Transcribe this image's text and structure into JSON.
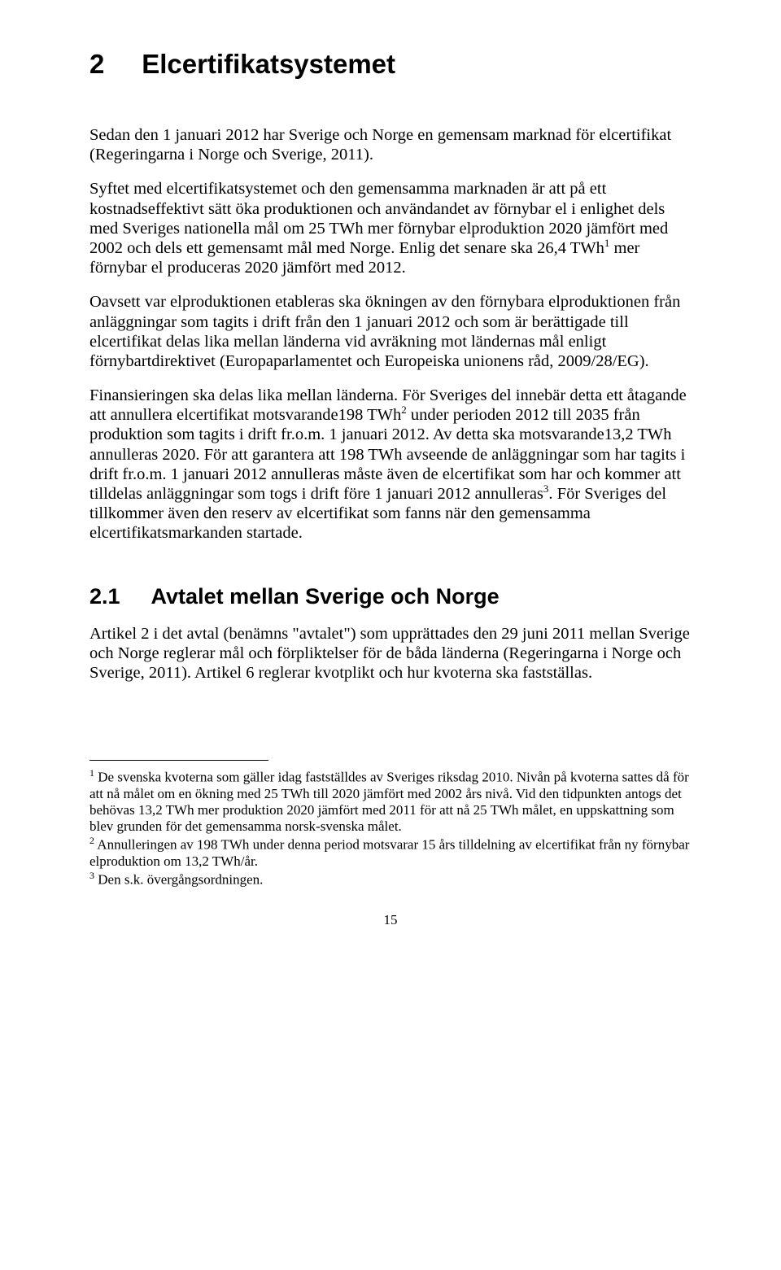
{
  "heading1_number": "2",
  "heading1_title": "Elcertifikatsystemet",
  "paragraphs": {
    "p1": "Sedan den 1 januari 2012 har Sverige och Norge en gemensam marknad för elcertifikat (Regeringarna i Norge och Sverige, 2011).",
    "p2_a": "Syftet med elcertifikatsystemet och den gemensamma marknaden är att på ett kostnadseffektivt sätt öka produktionen och användandet av förnybar el i enlighet dels med Sveriges nationella mål om 25 TWh mer förnybar elproduktion 2020 jämfört med 2002 och dels ett gemensamt mål med Norge. Enlig det senare ska 26,4 TWh",
    "p2_b": " mer förnybar el produceras 2020 jämfört med 2012.",
    "p3": "Oavsett var elproduktionen etableras ska ökningen av den förnybara elproduktionen från anläggningar som tagits i drift från den 1 januari 2012 och som är berättigade till elcertifikat delas lika mellan länderna vid avräkning mot ländernas mål enligt förnybartdirektivet (Europaparlamentet och Europeiska unionens råd, 2009/28/EG).",
    "p4_a": "Finansieringen ska delas lika mellan länderna. För Sveriges del innebär detta ett åtagande att annullera elcertifikat motsvarande198 TWh",
    "p4_b": " under perioden 2012 till 2035 från produktion som tagits i drift fr.o.m. 1 januari 2012. Av detta ska motsvarande13,2 TWh annulleras 2020. För att garantera att 198 TWh avseende de anläggningar som har tagits i drift fr.o.m. 1 januari 2012 annulleras måste även de elcertifikat som har och kommer att tilldelas anläggningar som togs i drift före 1 januari 2012 annulleras",
    "p4_c": ". För Sveriges del tillkommer även den reserv av elcertifikat som fanns när den gemensamma elcertifikatsmarkanden startade.",
    "p5": "Artikel 2 i det avtal (benämns \"avtalet\") som upprättades den 29 juni 2011 mellan Sverige och Norge reglerar mål och förpliktelser för de båda länderna (Regeringarna i Norge och Sverige, 2011). Artikel 6 reglerar kvotplikt och hur kvoterna ska fastställas."
  },
  "heading2_number": "2.1",
  "heading2_title": "Avtalet mellan Sverige och Norge",
  "footnotes": {
    "f1_sup": "1",
    "f1": " De svenska kvoterna som gäller idag fastställdes av Sveriges riksdag 2010. Nivån på kvoterna sattes då för att nå målet om en ökning med 25 TWh till 2020 jämfört med 2002 års nivå. Vid den tidpunkten antogs det behövas 13,2 TWh mer produktion 2020 jämfört med 2011 för att nå 25 TWh målet, en uppskattning som blev grunden för det gemensamma norsk-svenska målet.",
    "f2_sup": "2",
    "f2": " Annulleringen av 198 TWh under denna period motsvarar 15 års tilldelning av elcertifikat från ny förnybar elproduktion om 13,2 TWh/år.",
    "f3_sup": "3",
    "f3": " Den s.k. övergångsordningen."
  },
  "superscripts": {
    "s1": "1",
    "s2": "2",
    "s3": "3"
  },
  "page_number": "15"
}
